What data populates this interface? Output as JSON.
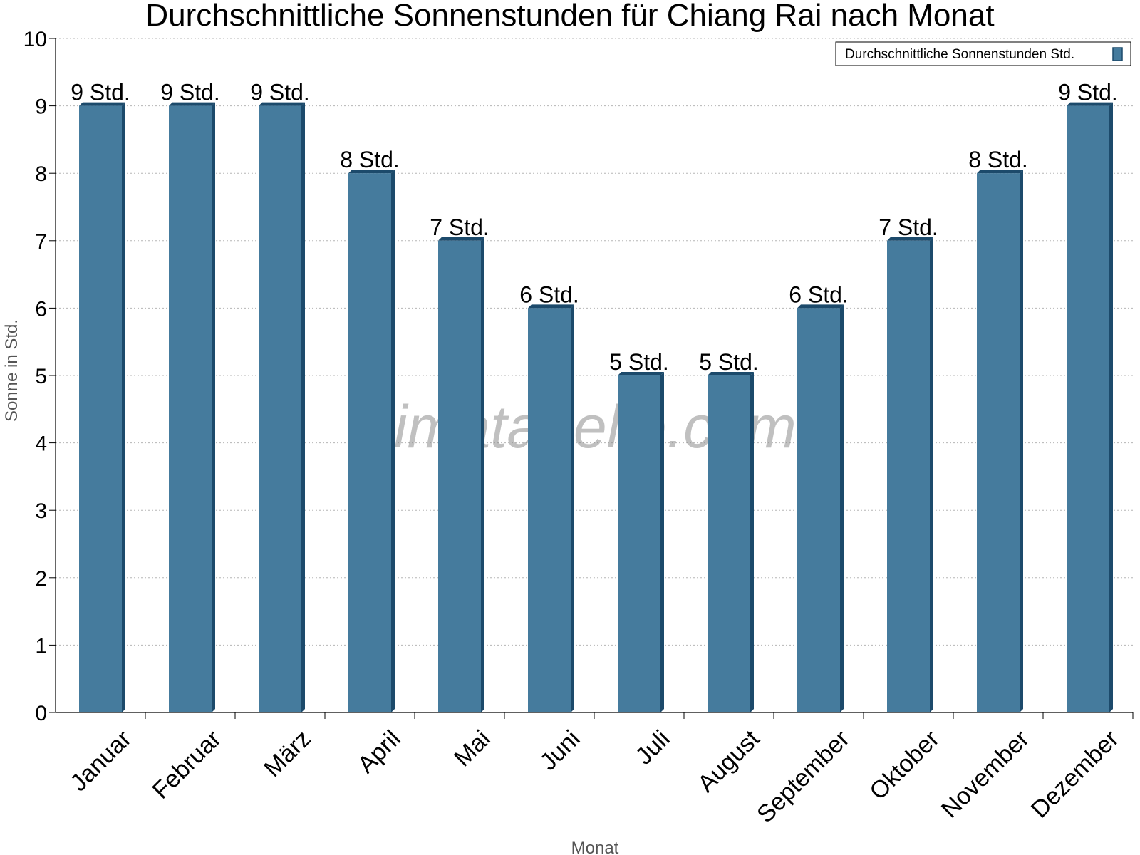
{
  "chart_data": {
    "type": "bar",
    "title": "Durchschnittliche Sonnenstunden für Chiang Rai nach Monat",
    "xlabel": "Monat",
    "ylabel": "Sonne in Std.",
    "ylim": [
      0,
      10
    ],
    "yticks": [
      0,
      1,
      2,
      3,
      4,
      5,
      6,
      7,
      8,
      9,
      10
    ],
    "grid": true,
    "legend_position": "top-right",
    "categories": [
      "Januar",
      "Februar",
      "März",
      "April",
      "Mai",
      "Juni",
      "Juli",
      "August",
      "September",
      "Oktober",
      "November",
      "Dezember"
    ],
    "series": [
      {
        "name": "Durchschnittliche Sonnenstunden Std.",
        "values": [
          9,
          9,
          9,
          8,
          7,
          6,
          5,
          5,
          6,
          7,
          8,
          9
        ],
        "color": "#457b9d",
        "edge_color": "#1c4a6b"
      }
    ],
    "value_label_suffix": " Std."
  },
  "watermark": "klimatabelle.com"
}
